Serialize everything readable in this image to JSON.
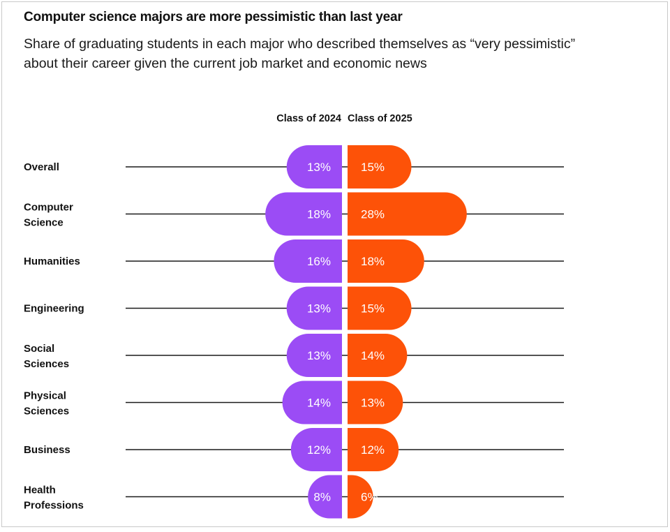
{
  "header": {
    "title": "Computer science majors are more pessimistic than last year",
    "subtitle": "Share of graduating students in each major who described themselves as “very pessimistic” about their career given the current job market and economic news"
  },
  "colors": {
    "class_2024": "#9b4cf5",
    "class_2025": "#fd5208",
    "line": "#1a1a1a"
  },
  "chart_data": {
    "type": "bar",
    "orientation": "horizontal-diverging",
    "title": "Computer science majors are more pessimistic than last year",
    "subtitle": "Share of graduating students in each major who described themselves as “very pessimistic” about their career given the current job market and economic news",
    "categories": [
      [
        "Overall"
      ],
      [
        "Computer",
        "Science"
      ],
      [
        "Humanities"
      ],
      [
        "Engineering"
      ],
      [
        "Social",
        "Sciences"
      ],
      [
        "Physical",
        "Sciences"
      ],
      [
        "Business"
      ],
      [
        "Health",
        "Professions"
      ]
    ],
    "series": [
      {
        "name": "Class of 2024",
        "values": [
          13,
          18,
          16,
          13,
          13,
          14,
          12,
          8
        ],
        "labels": [
          "13%",
          "18%",
          "16%",
          "13%",
          "13%",
          "14%",
          "12%",
          "8%"
        ]
      },
      {
        "name": "Class of 2025",
        "values": [
          15,
          28,
          18,
          15,
          14,
          13,
          12,
          6
        ],
        "labels": [
          "15%",
          "28%",
          "18%",
          "15%",
          "14%",
          "13%",
          "12%",
          "6%"
        ]
      }
    ],
    "unit": "%",
    "grid": false,
    "legend": "top-center"
  }
}
